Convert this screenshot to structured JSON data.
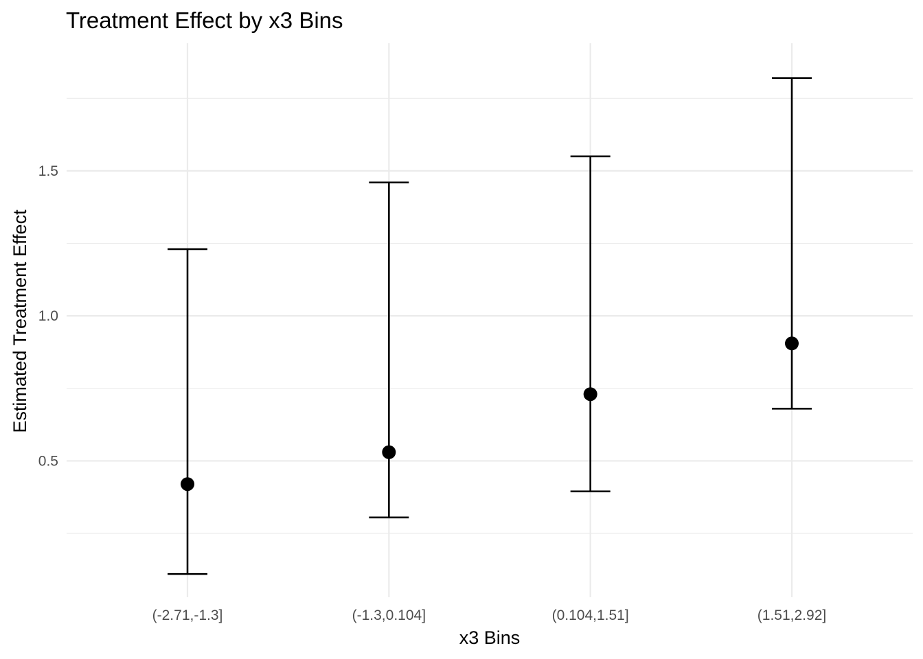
{
  "chart_data": {
    "type": "scatter",
    "title": "Treatment Effect by x3 Bins",
    "xlabel": "x3 Bins",
    "ylabel": "Estimated Treatment Effect",
    "categories": [
      "(-2.71,-1.3]",
      "(-1.3,0.104]",
      "(0.104,1.51]",
      "(1.51,2.92]"
    ],
    "estimate": [
      0.42,
      0.53,
      0.73,
      0.905
    ],
    "lower": [
      0.11,
      0.305,
      0.395,
      0.68
    ],
    "upper": [
      1.23,
      1.46,
      1.55,
      1.82
    ],
    "ylim": [
      0.03,
      1.94
    ],
    "yticks": [
      0.5,
      1.0,
      1.5
    ],
    "ytick_labels": [
      "0.5",
      "1.0",
      "1.5"
    ],
    "y_minor_ticks": [
      0.25,
      0.75,
      1.25,
      1.75
    ],
    "grid": true,
    "legend": "none",
    "colors": {
      "marks": "#000000",
      "grid": "#ebebeb",
      "tick_text": "#4d4d4d"
    }
  }
}
